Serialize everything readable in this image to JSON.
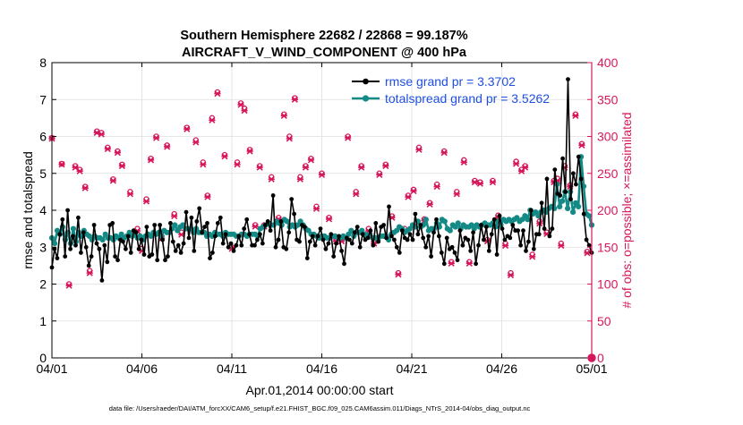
{
  "colors": {
    "rmse": "#000000",
    "spread": "#138a85",
    "obs": "#d6175c",
    "legend_text": "#1f4fe0",
    "axis": "#000000"
  },
  "chart_data": {
    "type": "line",
    "title": "Southern Hemisphere 22682 / 22868 = 99.187%",
    "subtitle": "AIRCRAFT_V_WIND_COMPONENT @ 400 hPa",
    "xlabel": "Apr.01,2014 00:00:00 start",
    "ylabel_left": "rmse and totalspread",
    "ylabel_right": "# of obs: o=possible; ×=assimilated",
    "footnote": "data file: /Users/raeder/DAI/ATM_forcXX/CAM6_setup/f.e21.FHIST_BGC.f09_025.CAM6assim.011/Diags_NTrS_2014-04/obs_diag_output.nc",
    "xlim": [
      0,
      30
    ],
    "xticks": [
      0,
      5,
      10,
      15,
      20,
      25,
      30
    ],
    "xtick_labels": [
      "04/01",
      "04/06",
      "04/11",
      "04/16",
      "04/21",
      "04/26",
      "05/01"
    ],
    "ylim_left": [
      0,
      8
    ],
    "yticks_left": [
      "0",
      "1",
      "2",
      "3",
      "4",
      "5",
      "6",
      "7",
      "8"
    ],
    "ylim_right": [
      0,
      400
    ],
    "yticks_right": [
      "0",
      "50",
      "100",
      "150",
      "200",
      "250",
      "300",
      "350",
      "400"
    ],
    "grid": true,
    "legend_position": "top-right",
    "legend": [
      "rmse grand pr = 3.3702",
      "totalspread grand pr = 3.5262"
    ],
    "series": [
      {
        "name": "rmse",
        "axis": "left",
        "values": [
          2.45,
          2.95,
          2.7,
          3.35,
          3.75,
          2.75,
          4.0,
          2.95,
          3.3,
          3.05,
          3.8,
          2.85,
          3.4,
          3.0,
          2.5,
          2.75,
          3.6,
          3.1,
          2.95,
          2.1,
          3.05,
          2.6,
          3.6,
          3.65,
          2.75,
          2.65,
          3.2,
          3.15,
          2.95,
          3.3,
          2.85,
          3.45,
          3.4,
          2.95,
          3.2,
          2.8,
          3.55,
          2.75,
          2.8,
          3.6,
          2.65,
          3.6,
          3.2,
          2.65,
          2.75,
          3.65,
          3.15,
          2.9,
          3.05,
          2.85,
          3.1,
          3.95,
          3.25,
          3.8,
          2.9,
          3.7,
          4.05,
          3.4,
          3.55,
          3.65,
          2.7,
          2.85,
          3.3,
          3.65,
          3.8,
          3.1,
          3.35,
          3.0,
          3.1,
          2.9,
          3.05,
          3.3,
          3.05,
          3.5,
          3.75,
          3.35,
          3.05,
          3.05,
          3.2,
          3.35,
          3.1,
          3.6,
          3.7,
          3.45,
          4.4,
          3.0,
          3.2,
          3.7,
          3.0,
          2.95,
          3.4,
          4.3,
          3.9,
          3.2,
          3.15,
          3.6,
          3.55,
          2.7,
          3.15,
          3.3,
          3.05,
          3.3,
          3.5,
          3.2,
          2.95,
          3.1,
          3.35,
          2.75,
          3.1,
          3.3,
          2.9,
          2.55,
          3.25,
          3.2,
          3.1,
          3.4,
          3.55,
          3.0,
          3.35,
          3.2,
          3.25,
          3.45,
          3.05,
          3.65,
          3.15,
          3.55,
          3.6,
          3.25,
          4.1,
          3.3,
          3.2,
          3.0,
          2.85,
          3.45,
          3.25,
          3.2,
          3.35,
          3.2,
          3.9,
          3.35,
          3.6,
          3.25,
          3.0,
          3.3,
          2.75,
          3.4,
          3.75,
          3.3,
          2.85,
          2.55,
          3.25,
          2.95,
          3.0,
          2.85,
          2.65,
          3.45,
          3.05,
          3.25,
          3.2,
          2.9,
          3.4,
          2.55,
          3.05,
          3.6,
          3.2,
          3.55,
          2.9,
          3.35,
          3.75,
          2.8,
          3.85,
          3.5,
          3.2,
          3.3,
          3.25,
          3.6,
          3.45,
          3.45,
          3.05,
          3.45,
          2.9,
          3.15,
          4.0,
          2.95,
          3.35,
          3.35,
          4.2,
          3.5,
          4.85,
          3.3,
          3.5,
          5.1,
          4.45,
          4.4,
          5.4,
          4.5,
          7.55,
          4.3,
          5.0,
          4.7,
          5.45,
          4.85,
          3.9,
          3.2,
          3.05,
          2.85
        ]
      },
      {
        "name": "totalspread",
        "axis": "left",
        "values": [
          3.25,
          3.1,
          3.45,
          3.35,
          3.55,
          3.2,
          3.4,
          3.1,
          3.5,
          3.15,
          3.4,
          3.3,
          3.45,
          3.35,
          3.3,
          3.2,
          3.3,
          3.25,
          3.25,
          3.2,
          3.35,
          3.25,
          3.25,
          3.2,
          3.3,
          3.25,
          3.35,
          3.25,
          3.3,
          3.4,
          3.3,
          3.35,
          3.25,
          3.3,
          3.2,
          3.3,
          3.35,
          3.3,
          3.4,
          3.35,
          3.4,
          3.3,
          3.45,
          3.4,
          3.4,
          3.5,
          3.6,
          3.45,
          3.55,
          3.6,
          3.5,
          3.5,
          3.5,
          3.4,
          3.5,
          3.4,
          3.4,
          3.4,
          3.3,
          3.35,
          3.3,
          3.4,
          3.35,
          3.35,
          3.3,
          3.4,
          3.35,
          3.35,
          3.35,
          3.3,
          3.3,
          3.35,
          3.35,
          3.3,
          3.35,
          3.35,
          3.35,
          3.3,
          3.5,
          3.55,
          3.6,
          3.65,
          3.6,
          3.6,
          3.7,
          3.65,
          3.6,
          3.75,
          3.7,
          3.55,
          3.6,
          3.55,
          3.6,
          3.7,
          3.6,
          3.5,
          3.45,
          3.35,
          3.35,
          3.3,
          3.25,
          3.3,
          3.3,
          3.25,
          3.25,
          3.3,
          3.3,
          3.25,
          3.25,
          3.3,
          3.25,
          3.35,
          3.45,
          3.3,
          3.4,
          3.4,
          3.45,
          3.35,
          3.3,
          3.35,
          3.25,
          3.25,
          3.2,
          3.3,
          3.3,
          3.3,
          3.2,
          3.35,
          3.4,
          3.45,
          3.55,
          3.5,
          3.4,
          3.45,
          3.5,
          3.6,
          3.55,
          3.7,
          3.55,
          3.6,
          3.75,
          3.45,
          3.5,
          3.5,
          3.65,
          3.55,
          3.75,
          3.7,
          3.5,
          3.45,
          3.6,
          3.55,
          3.65,
          3.5,
          3.6,
          3.55,
          3.55,
          3.6,
          3.5,
          3.6,
          3.55,
          3.6,
          3.65,
          3.6,
          3.6,
          3.65,
          3.55,
          3.7,
          3.6,
          3.75,
          3.7,
          3.75,
          3.7,
          3.75,
          3.8,
          3.7,
          3.75,
          3.85,
          3.75,
          4.0,
          3.9,
          3.95,
          3.85,
          3.95,
          4.0,
          3.95,
          4.05,
          4.1,
          4.05,
          4.7,
          4.1,
          4.25,
          4.5,
          4.05,
          4.5,
          3.95,
          4.2,
          4.1,
          5.45,
          4.65,
          3.9,
          3.85,
          3.6
        ]
      }
    ],
    "obs_x": [
      0.0,
      0.55,
      0.95,
      1.3,
      1.55,
      1.85,
      2.1,
      2.5,
      2.75,
      3.1,
      3.4,
      3.65,
      3.9,
      4.35,
      4.75,
      5.0,
      5.25,
      5.5,
      5.8,
      6.1,
      6.4,
      6.8,
      7.2,
      7.5,
      8.0,
      8.4,
      8.65,
      8.9,
      9.2,
      9.6,
      10.0,
      10.3,
      10.5,
      10.7,
      11.0,
      11.3,
      11.55,
      11.8,
      12.2,
      12.6,
      12.9,
      13.2,
      13.5,
      13.8,
      14.1,
      14.4,
      14.7,
      15.0,
      15.4,
      15.8,
      16.1,
      16.45,
      16.9,
      17.2,
      17.6,
      17.9,
      18.2,
      18.55,
      18.9,
      19.25,
      19.6,
      19.8,
      20.1,
      20.4,
      20.7,
      21.0,
      21.4,
      21.8,
      22.2,
      22.5,
      22.9,
      23.2,
      23.5,
      23.8,
      24.2,
      24.5,
      24.8,
      25.2,
      25.5,
      25.8,
      26.1,
      26.3,
      26.7,
      27.1,
      27.5,
      27.9,
      28.1,
      28.3,
      28.5,
      28.8,
      29.1,
      29.45,
      29.75
    ],
    "obs_possible": [
      298,
      263,
      100,
      260,
      255,
      232,
      118,
      307,
      305,
      285,
      242,
      280,
      262,
      225,
      175,
      148,
      215,
      270,
      300,
      165,
      288,
      195,
      170,
      312,
      295,
      265,
      220,
      325,
      360,
      275,
      150,
      265,
      345,
      338,
      282,
      180,
      260,
      180,
      245,
      190,
      330,
      300,
      352,
      245,
      260,
      270,
      205,
      250,
      190,
      160,
      160,
      300,
      225,
      260,
      175,
      157,
      250,
      262,
      192,
      115,
      175,
      220,
      228,
      285,
      188,
      210,
      235,
      280,
      130,
      225,
      268,
      130,
      240,
      238,
      160,
      240,
      193,
      155,
      115,
      266,
      255,
      260,
      140,
      185,
      170,
      240,
      243,
      155,
      260,
      234,
      330,
      290,
      144
    ],
    "obs_assimilated": [
      297,
      262,
      98,
      258,
      253,
      230,
      115,
      305,
      303,
      283,
      240,
      278,
      260,
      222,
      172,
      145,
      212,
      268,
      298,
      162,
      286,
      192,
      167,
      310,
      292,
      262,
      218,
      322,
      358,
      273,
      148,
      262,
      343,
      335,
      280,
      178,
      258,
      178,
      242,
      188,
      328,
      297,
      350,
      242,
      258,
      268,
      202,
      248,
      188,
      158,
      158,
      298,
      222,
      258,
      172,
      155,
      248,
      260,
      190,
      113,
      172,
      218,
      226,
      282,
      186,
      208,
      232,
      278,
      128,
      222,
      265,
      128,
      238,
      236,
      158,
      238,
      190,
      152,
      112,
      263,
      253,
      258,
      137,
      182,
      168,
      238,
      240,
      152,
      258,
      232,
      328,
      288,
      142
    ]
  }
}
